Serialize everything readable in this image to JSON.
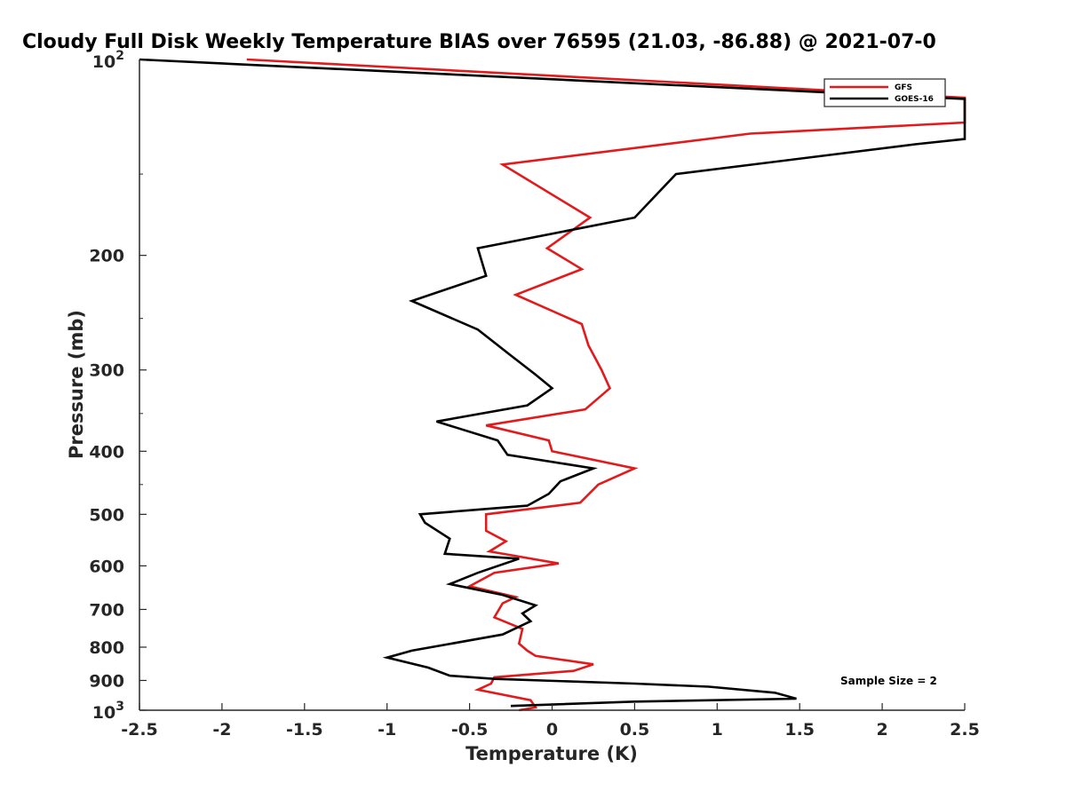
{
  "chart_data": {
    "type": "line",
    "title": "Cloudy Full Disk Weekly Temperature BIAS over 76595 (21.03, -86.88) @ 2021-07-0",
    "xlabel": "Temperature (K)",
    "ylabel": "Pressure (mb)",
    "xlim": [
      -2.5,
      2.5
    ],
    "ylim": [
      100,
      1000
    ],
    "y_scale": "log",
    "y_reversed": true,
    "x_ticks": [
      -2.5,
      -2,
      -1.5,
      -1,
      -0.5,
      0,
      0.5,
      1,
      1.5,
      2,
      2.5
    ],
    "x_tick_labels": [
      "-2.5",
      "-2",
      "-1.5",
      "-1",
      "-0.5",
      "0",
      "0.5",
      "1",
      "1.5",
      "2",
      "2.5"
    ],
    "y_ticks": [
      200,
      300,
      400,
      500,
      600,
      700,
      800,
      900
    ],
    "y_tick_labels": [
      "200",
      "300",
      "400",
      "500",
      "600",
      "700",
      "800",
      "900"
    ],
    "y_tick_top": {
      "base": "10",
      "exp": "2"
    },
    "y_tick_bottom": {
      "base": "10",
      "exp": "3"
    },
    "legend_position": "top-right",
    "annotation": "Sample Size = 2",
    "series": [
      {
        "name": "GFS",
        "color": "#e31a1c",
        "points": [
          [
            -1.85,
            100
          ],
          [
            2.5,
            114.5
          ],
          [
            2.5,
            125
          ],
          [
            1.2,
            130
          ],
          [
            -0.3,
            145
          ],
          [
            0.23,
            175
          ],
          [
            -0.03,
            195
          ],
          [
            0.18,
            210
          ],
          [
            -0.22,
            230
          ],
          [
            0.18,
            255
          ],
          [
            0.22,
            275
          ],
          [
            0.3,
            300
          ],
          [
            0.35,
            320
          ],
          [
            0.2,
            345
          ],
          [
            -0.4,
            365
          ],
          [
            -0.02,
            385
          ],
          [
            0.0,
            400
          ],
          [
            0.5,
            425
          ],
          [
            0.28,
            450
          ],
          [
            0.17,
            480
          ],
          [
            -0.4,
            500
          ],
          [
            -0.4,
            530
          ],
          [
            -0.28,
            550
          ],
          [
            -0.38,
            570
          ],
          [
            0.04,
            595
          ],
          [
            -0.35,
            615
          ],
          [
            -0.5,
            645
          ],
          [
            -0.22,
            670
          ],
          [
            -0.3,
            685
          ],
          [
            -0.35,
            720
          ],
          [
            -0.18,
            750
          ],
          [
            -0.2,
            790
          ],
          [
            -0.15,
            810
          ],
          [
            -0.1,
            825
          ],
          [
            0.25,
            850
          ],
          [
            0.13,
            870
          ],
          [
            -0.35,
            890
          ],
          [
            -0.37,
            910
          ],
          [
            -0.45,
            930
          ],
          [
            -0.13,
            965
          ],
          [
            -0.1,
            990
          ],
          [
            -0.2,
            1000
          ]
        ]
      },
      {
        "name": "GOES-16",
        "color": "#000000",
        "points": [
          [
            -2.5,
            100
          ],
          [
            2.5,
            115
          ],
          [
            2.5,
            132.5
          ],
          [
            2.2,
            135
          ],
          [
            0.75,
            150
          ],
          [
            0.5,
            175
          ],
          [
            -0.45,
            195
          ],
          [
            -0.4,
            215
          ],
          [
            -0.85,
            235
          ],
          [
            -0.45,
            260
          ],
          [
            -0.25,
            285
          ],
          [
            -0.1,
            305
          ],
          [
            0.0,
            320
          ],
          [
            -0.15,
            340
          ],
          [
            -0.7,
            360
          ],
          [
            -0.33,
            385
          ],
          [
            -0.27,
            405
          ],
          [
            0.25,
            425
          ],
          [
            0.05,
            445
          ],
          [
            -0.02,
            465
          ],
          [
            -0.15,
            485
          ],
          [
            -0.8,
            500
          ],
          [
            -0.77,
            515
          ],
          [
            -0.62,
            545
          ],
          [
            -0.65,
            575
          ],
          [
            -0.2,
            585
          ],
          [
            -0.45,
            615
          ],
          [
            -0.62,
            640
          ],
          [
            -0.3,
            665
          ],
          [
            -0.1,
            690
          ],
          [
            -0.18,
            710
          ],
          [
            -0.13,
            730
          ],
          [
            -0.3,
            765
          ],
          [
            -0.85,
            810
          ],
          [
            -1.0,
            830
          ],
          [
            -0.75,
            860
          ],
          [
            -0.62,
            885
          ],
          [
            -0.35,
            895
          ],
          [
            0.5,
            910
          ],
          [
            0.95,
            920
          ],
          [
            1.35,
            940
          ],
          [
            1.48,
            960
          ],
          [
            0.5,
            970
          ],
          [
            -0.25,
            985
          ]
        ]
      }
    ]
  }
}
